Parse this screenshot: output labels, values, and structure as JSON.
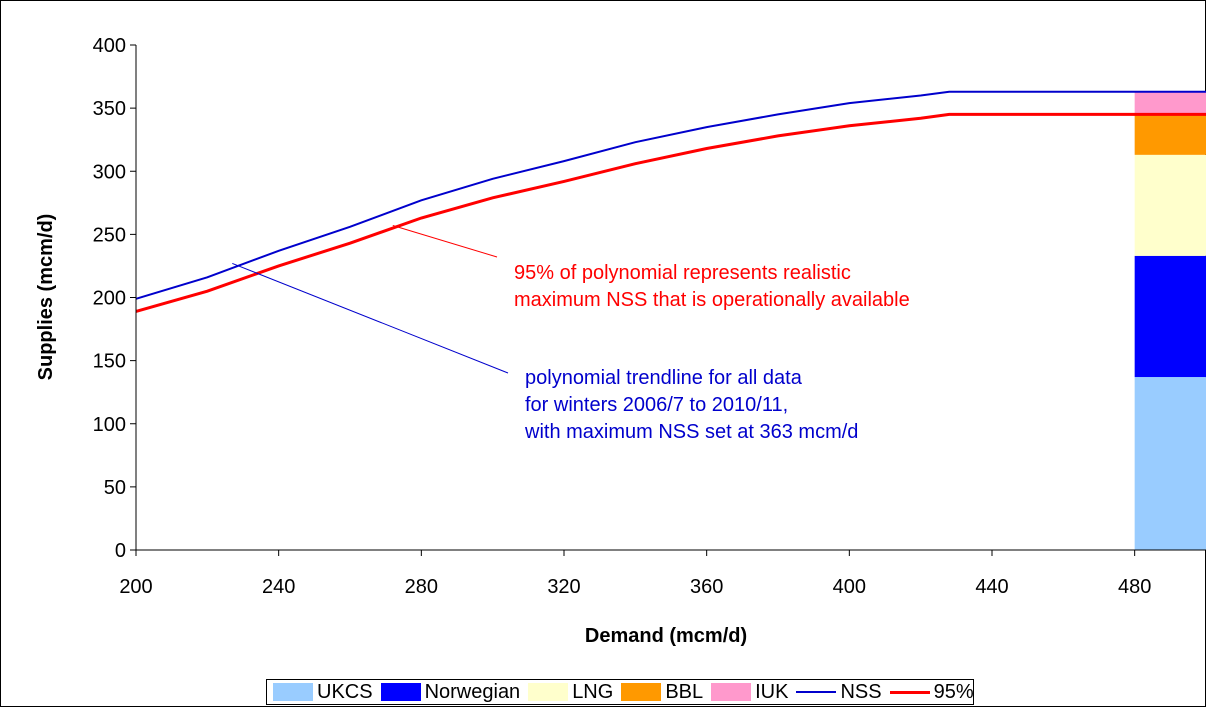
{
  "chart_data": {
    "type": "line",
    "xlabel": "Demand (mcm/d)",
    "ylabel": "Supplies (mcm/d)",
    "xlim": [
      200,
      500
    ],
    "ylim": [
      0,
      400
    ],
    "x_ticks": [
      "200",
      "240",
      "280",
      "320",
      "360",
      "400",
      "440",
      "480"
    ],
    "y_ticks": [
      "0",
      "50",
      "100",
      "150",
      "200",
      "250",
      "300",
      "350",
      "400"
    ],
    "series": [
      {
        "name": "NSS",
        "color": "#0000cc",
        "points": [
          [
            200,
            199
          ],
          [
            220,
            216
          ],
          [
            240,
            237
          ],
          [
            260,
            256
          ],
          [
            280,
            277
          ],
          [
            300,
            294
          ],
          [
            320,
            308
          ],
          [
            340,
            323
          ],
          [
            360,
            335
          ],
          [
            380,
            345
          ],
          [
            400,
            354
          ],
          [
            420,
            360
          ],
          [
            428,
            363
          ],
          [
            500,
            363
          ]
        ]
      },
      {
        "name": "95%",
        "color": "#ff0000",
        "points": [
          [
            200,
            189
          ],
          [
            220,
            205
          ],
          [
            240,
            225
          ],
          [
            260,
            243
          ],
          [
            280,
            263
          ],
          [
            300,
            279
          ],
          [
            320,
            292
          ],
          [
            340,
            306
          ],
          [
            360,
            318
          ],
          [
            380,
            328
          ],
          [
            400,
            336
          ],
          [
            420,
            342
          ],
          [
            428,
            345
          ],
          [
            500,
            345
          ]
        ]
      }
    ],
    "stacked_bar": {
      "x_start": 480,
      "x_end": 500,
      "segments": [
        {
          "name": "UKCS",
          "value": 137,
          "color": "#99ccff"
        },
        {
          "name": "Norwegian",
          "value": 96,
          "color": "#0000ff"
        },
        {
          "name": "LNG",
          "value": 80,
          "color": "#ffffcc"
        },
        {
          "name": "BBL",
          "value": 32,
          "color": "#ff9900"
        },
        {
          "name": "IUK",
          "value": 18,
          "color": "#ff99cc"
        }
      ]
    },
    "annotations": [
      {
        "lines": [
          "95% of polynomial represents realistic",
          "maximum NSS that is operationally available"
        ],
        "color": "#ff0000",
        "target": [
          272,
          257
        ]
      },
      {
        "lines": [
          "polynomial trendline for all data",
          "for winters 2006/7 to 2010/11,",
          "with maximum NSS set at 363 mcm/d"
        ],
        "color": "#0000cc",
        "target": [
          227,
          227
        ]
      }
    ],
    "legend": {
      "position": "bottom",
      "entries": [
        {
          "label": "UKCS",
          "kind": "box",
          "color": "#99ccff"
        },
        {
          "label": "Norwegian",
          "kind": "box",
          "color": "#0000ff"
        },
        {
          "label": "LNG",
          "kind": "box",
          "color": "#ffffcc"
        },
        {
          "label": "BBL",
          "kind": "box",
          "color": "#ff9900"
        },
        {
          "label": "IUK",
          "kind": "box",
          "color": "#ff99cc"
        },
        {
          "label": "NSS",
          "kind": "line",
          "color": "#0000cc"
        },
        {
          "label": "95%",
          "kind": "line",
          "color": "#ff0000"
        }
      ]
    },
    "grid": false
  }
}
